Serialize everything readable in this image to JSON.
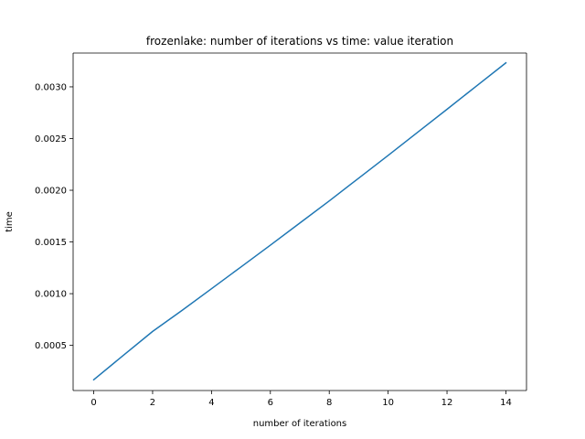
{
  "chart_data": {
    "type": "line",
    "title": "frozenlake: number of iterations vs time: value iteration",
    "xlabel": "number of iterations",
    "ylabel": "time",
    "xlim": [
      -0.7,
      14.7
    ],
    "ylim": [
      6.34e-05,
      0.0033268
    ],
    "xticks": [
      0,
      2,
      4,
      6,
      8,
      10,
      12,
      14
    ],
    "xtick_labels": [
      "0",
      "2",
      "4",
      "6",
      "8",
      "10",
      "12",
      "14"
    ],
    "yticks": [
      0.0005,
      0.001,
      0.0015,
      0.002,
      0.0025,
      0.003
    ],
    "ytick_labels": [
      "0.0005",
      "0.0010",
      "0.0015",
      "0.0020",
      "0.0025",
      "0.0030"
    ],
    "grid": false,
    "series": [
      {
        "color": "#1f77b4",
        "x": [
          0,
          1,
          2,
          3,
          4,
          5,
          6,
          7,
          8,
          9,
          10,
          11,
          12,
          13,
          14
        ],
        "y": [
          0.000168,
          0.000402,
          0.000635,
          0.000838,
          0.001048,
          0.001258,
          0.001469,
          0.001683,
          0.001897,
          0.002117,
          0.002337,
          0.00256,
          0.002783,
          0.003008,
          0.003232
        ]
      }
    ]
  }
}
